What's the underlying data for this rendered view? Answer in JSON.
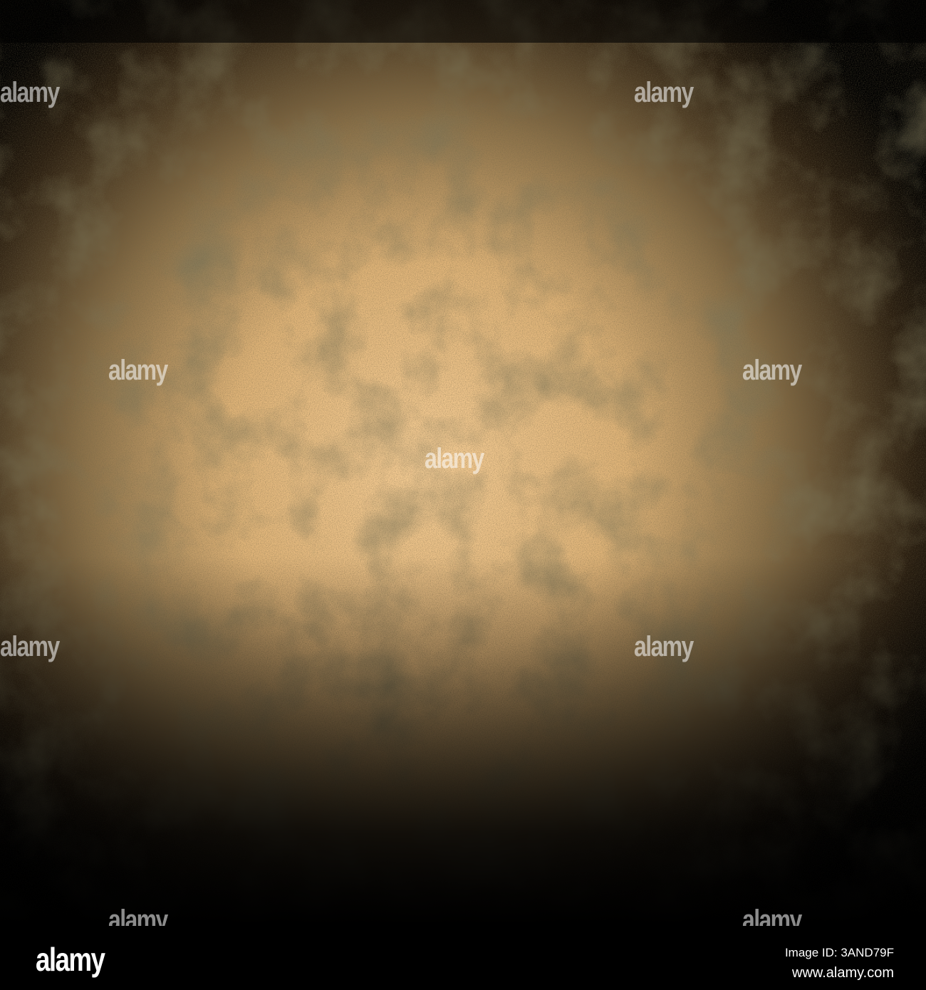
{
  "image": {
    "description_colors": {
      "center": "#f2c890",
      "mid": "#a88a55",
      "edge": "#000000"
    },
    "watermark_text": "alamy"
  },
  "footer": {
    "logo": "alamy",
    "image_id": "Image ID: 3AND79F",
    "website": "www.alamy.com"
  }
}
